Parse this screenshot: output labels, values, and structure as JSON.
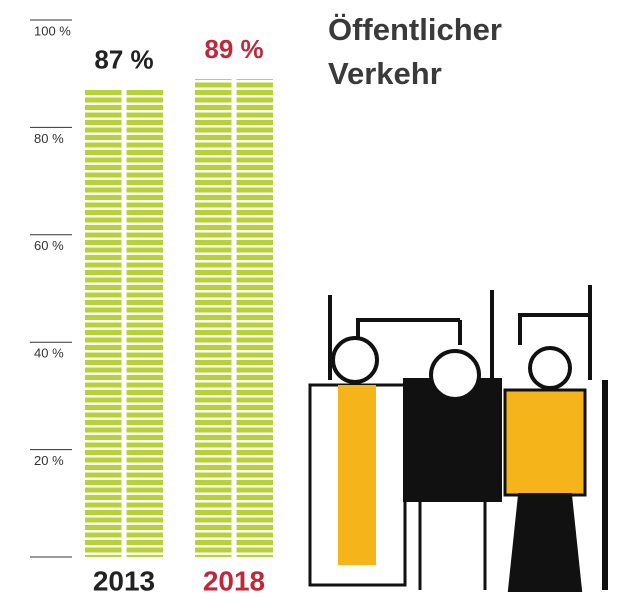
{
  "chart_data": {
    "type": "bar",
    "title": "Öffentlicher Verkehr",
    "categories": [
      "2013",
      "2018"
    ],
    "values": [
      87,
      89
    ],
    "value_labels": [
      "87 %",
      "89 %"
    ],
    "color": "#b5d334",
    "label_colors": [
      "#222222",
      "#c0283a"
    ],
    "ylim": [
      0,
      100
    ],
    "yticks": [
      {
        "value": 20,
        "label": "20 %"
      },
      {
        "value": 40,
        "label": "40 %"
      },
      {
        "value": 60,
        "label": "60 %"
      },
      {
        "value": 80,
        "label": "80 %"
      },
      {
        "value": 100,
        "label": "100 %"
      }
    ]
  }
}
